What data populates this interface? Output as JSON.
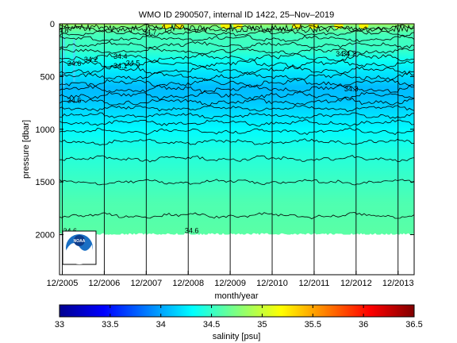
{
  "chart_data": {
    "type": "heatmap",
    "title": "WMO ID 2900507, internal ID 1422, 25–Nov–2019",
    "xlabel": "month/year",
    "ylabel": "pressure [dbar]",
    "x_ticks": [
      "12/2005",
      "12/2006",
      "12/2007",
      "12/2008",
      "12/2009",
      "12/2010",
      "12/2011",
      "12/2012",
      "12/2013"
    ],
    "y_ticks": [
      0,
      500,
      1000,
      1500,
      2000
    ],
    "ylim": [
      0,
      2380
    ],
    "y_reversed": true,
    "xlim_years": [
      2005.85,
      2014.3
    ],
    "grid": "vertical lines at each December",
    "colorbar": {
      "label": "salinity [psu]",
      "min": 33,
      "max": 36.5,
      "ticks": [
        "33",
        "33.5",
        "34",
        "34.5",
        "35",
        "35.5",
        "36",
        "36.5"
      ],
      "colormap": "jet"
    },
    "salinity_profile": [
      {
        "pressure": 0,
        "salinity": 34.95
      },
      {
        "pressure": 20,
        "salinity": 34.75
      },
      {
        "pressure": 100,
        "salinity": 34.55
      },
      {
        "pressure": 250,
        "salinity": 34.5
      },
      {
        "pressure": 350,
        "salinity": 34.35
      },
      {
        "pressure": 500,
        "salinity": 34.2
      },
      {
        "pressure": 600,
        "salinity": 34.08
      },
      {
        "pressure": 700,
        "salinity": 34.1
      },
      {
        "pressure": 850,
        "salinity": 34.2
      },
      {
        "pressure": 1000,
        "salinity": 34.3
      },
      {
        "pressure": 1200,
        "salinity": 34.42
      },
      {
        "pressure": 1450,
        "salinity": 34.5
      },
      {
        "pressure": 1700,
        "salinity": 34.58
      },
      {
        "pressure": 2000,
        "salinity": 34.62
      }
    ],
    "contour_pressures": [
      40,
      90,
      140,
      200,
      260,
      320,
      380,
      440,
      500,
      560,
      620,
      680,
      740,
      800,
      870,
      940,
      1020,
      1120,
      1280,
      1500,
      1820
    ],
    "contour_labels": [
      {
        "text": "34.8",
        "year": 2005.9,
        "pressure": 85
      },
      {
        "text": "34.7",
        "year": 2008.0,
        "pressure": 100
      },
      {
        "text": "34.6",
        "year": 2006.2,
        "pressure": 400
      },
      {
        "text": "34.6",
        "year": 2006.2,
        "pressure": 750
      },
      {
        "text": "34.4",
        "year": 2007.3,
        "pressure": 330
      },
      {
        "text": "34.4",
        "year": 2012.6,
        "pressure": 310
      },
      {
        "text": "34.2",
        "year": 2006.6,
        "pressure": 360
      },
      {
        "text": "34.2",
        "year": 2012.75,
        "pressure": 305
      },
      {
        "text": "34.1",
        "year": 2007.3,
        "pressure": 420
      },
      {
        "text": "34.5",
        "year": 2007.6,
        "pressure": 395
      },
      {
        "text": "34.3",
        "year": 2012.8,
        "pressure": 640
      },
      {
        "text": "34.6",
        "year": 2006.1,
        "pressure": 1990
      },
      {
        "text": "34.6",
        "year": 2009.0,
        "pressure": 1985
      }
    ],
    "logo": "NOAA"
  }
}
